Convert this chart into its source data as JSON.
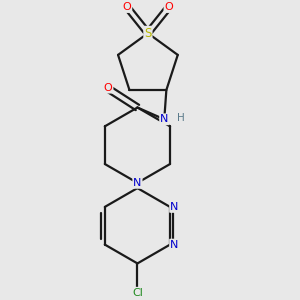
{
  "bg_color": "#e8e8e8",
  "bond_color": "#1a1a1a",
  "bond_width": 1.6,
  "atoms": {
    "S": {
      "color": "#b8b800",
      "size": 8
    },
    "O": {
      "color": "#ff0000",
      "size": 8
    },
    "N": {
      "color": "#0000cc",
      "size": 8
    },
    "Cl": {
      "color": "#228B22",
      "size": 8
    },
    "H": {
      "color": "#5a7a8a",
      "size": 7.5
    },
    "C": {
      "color": "#1a1a1a",
      "size": 0
    }
  },
  "figsize": [
    3.0,
    3.0
  ],
  "dpi": 100,
  "xlim": [
    0.5,
    2.5
  ],
  "ylim": [
    0.3,
    3.1
  ]
}
